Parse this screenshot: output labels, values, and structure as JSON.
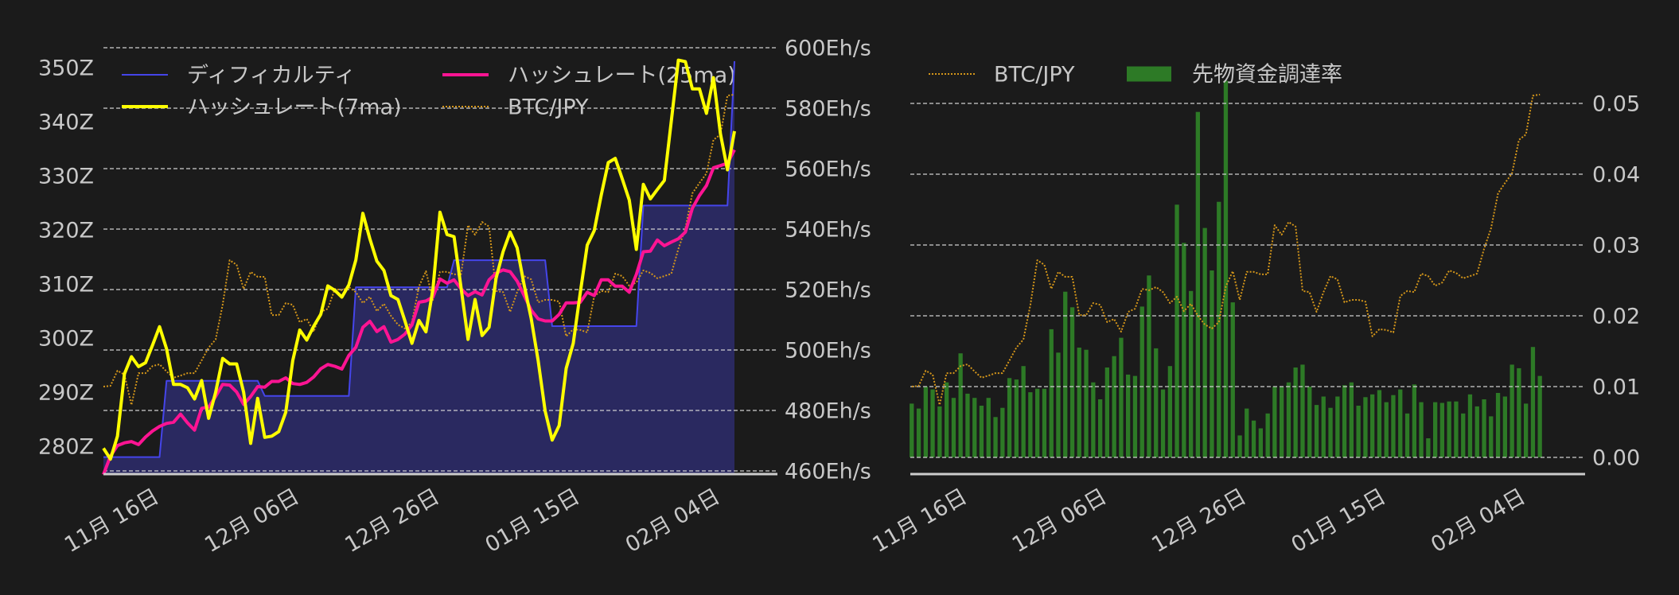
{
  "page": {
    "background": "#1b1b1b",
    "text_color": "#c8c8c8",
    "grid_color": "#cfcfcf",
    "axis_line_color": "#cccccc"
  },
  "chart_data": [
    {
      "id": "chart-hashrate-difficulty",
      "type": "line",
      "title": "",
      "xlabel": "",
      "num_points": 91,
      "xlim": [
        0,
        95.9
      ],
      "x_ticks": {
        "indices": [
          7,
          27,
          47,
          67,
          87
        ],
        "labels": [
          "11月 16日",
          "12月 06日",
          "12月 26日",
          "01月 15日",
          "02月 04日"
        ],
        "rotation": 30
      },
      "axes": {
        "difficulty": {
          "side": "left",
          "ylim": [
            274.85,
            356.62
          ],
          "ticks": [
            280,
            290,
            300,
            310,
            320,
            330,
            340,
            350
          ],
          "tick_labels": [
            "280Z",
            "290Z",
            "300Z",
            "310Z",
            "320Z",
            "330Z",
            "340Z",
            "350Z"
          ],
          "grid": false
        },
        "hashrate": {
          "side": "right",
          "ylim": [
            458.95,
            605.26
          ],
          "ticks": [
            460,
            480,
            500,
            520,
            540,
            560,
            580,
            600
          ],
          "tick_labels": [
            "460Eh/s",
            "480Eh/s",
            "500Eh/s",
            "520Eh/s",
            "540Eh/s",
            "560Eh/s",
            "580Eh/s",
            "600Eh/s"
          ],
          "grid": true
        },
        "btc": {
          "side": "hidden",
          "ylim": [
            -0.0472,
            1.2022
          ]
        }
      },
      "series": [
        {
          "key": "difficulty",
          "name": "ディフィカルティ",
          "axis": "difficulty",
          "kind": "area-line",
          "color": "#4545ea",
          "fill": "#2a2960",
          "width": 2,
          "unit": "Z",
          "values": [
            278.0,
            278.0,
            278.0,
            278.0,
            278.0,
            278.0,
            278.0,
            278.0,
            278.0,
            292.1,
            292.1,
            292.1,
            292.1,
            292.1,
            292.1,
            292.1,
            292.1,
            292.1,
            292.1,
            292.1,
            292.1,
            292.1,
            292.1,
            289.3,
            289.3,
            289.3,
            289.3,
            289.3,
            289.3,
            289.3,
            289.3,
            289.3,
            289.3,
            289.3,
            289.3,
            289.3,
            309.4,
            309.4,
            309.4,
            309.4,
            309.4,
            309.4,
            309.4,
            309.4,
            309.4,
            309.4,
            309.4,
            309.4,
            309.4,
            309.4,
            314.4,
            314.4,
            314.4,
            314.4,
            314.4,
            314.4,
            314.4,
            314.4,
            314.4,
            314.4,
            314.4,
            314.4,
            314.4,
            314.4,
            302.2,
            302.2,
            302.2,
            302.2,
            302.2,
            302.2,
            302.2,
            302.2,
            302.2,
            302.2,
            302.2,
            302.2,
            302.2,
            324.5,
            324.5,
            324.5,
            324.5,
            324.5,
            324.5,
            324.5,
            324.5,
            324.5,
            324.5,
            324.5,
            324.5,
            324.5,
            351.2
          ]
        },
        {
          "key": "btc",
          "name": "BTC/JPY",
          "axis": "btc",
          "kind": "dotted",
          "color": "#d4961a",
          "width": 2,
          "unit": "relative (no axis shown)",
          "values": [
            0.2,
            0.202,
            0.245,
            0.234,
            0.148,
            0.238,
            0.238,
            0.258,
            0.263,
            0.243,
            0.225,
            0.231,
            0.238,
            0.238,
            0.274,
            0.31,
            0.333,
            0.431,
            0.557,
            0.544,
            0.476,
            0.524,
            0.51,
            0.51,
            0.402,
            0.402,
            0.436,
            0.431,
            0.382,
            0.391,
            0.355,
            0.411,
            0.42,
            0.476,
            0.472,
            0.481,
            0.467,
            0.436,
            0.454,
            0.413,
            0.434,
            0.4,
            0.375,
            0.364,
            0.382,
            0.483,
            0.526,
            0.445,
            0.524,
            0.524,
            0.517,
            0.517,
            0.656,
            0.629,
            0.665,
            0.652,
            0.47,
            0.467,
            0.411,
            0.467,
            0.512,
            0.503,
            0.438,
            0.445,
            0.445,
            0.44,
            0.342,
            0.362,
            0.36,
            0.353,
            0.456,
            0.47,
            0.467,
            0.519,
            0.512,
            0.485,
            0.494,
            0.528,
            0.521,
            0.506,
            0.512,
            0.519,
            0.589,
            0.647,
            0.746,
            0.775,
            0.802,
            0.897,
            0.912,
            1.022,
            1.025
          ]
        },
        {
          "key": "hashrate_25ma",
          "name": "ハッシュレート(25ma)",
          "axis": "hashrate",
          "kind": "line",
          "color": "#ff1493",
          "width": 4,
          "unit": "Eh/s",
          "values": [
            458.8,
            464.9,
            468.4,
            469.3,
            469.7,
            468.7,
            471.2,
            473.2,
            474.7,
            475.7,
            476.1,
            478.8,
            475.9,
            473.5,
            480.7,
            481.1,
            484.6,
            488.6,
            488.4,
            486.1,
            482.0,
            484.6,
            487.9,
            487.7,
            489.6,
            489.6,
            490.8,
            488.9,
            488.6,
            489.3,
            491.1,
            493.8,
            495.2,
            494.6,
            493.7,
            498.2,
            500.9,
            507.5,
            509.5,
            506.1,
            507.7,
            502.6,
            503.5,
            505.3,
            508.3,
            515.8,
            516.2,
            517.5,
            523.5,
            522.1,
            523.2,
            520.2,
            518.0,
            519.3,
            518.2,
            523.2,
            525.4,
            526.5,
            525.9,
            522.8,
            518.0,
            513.2,
            510.3,
            509.6,
            509.6,
            511.8,
            515.6,
            515.6,
            515.8,
            519.1,
            518.0,
            523.2,
            523.2,
            521.1,
            521.1,
            519.1,
            525.0,
            532.5,
            532.7,
            536.4,
            534.5,
            535.7,
            536.8,
            539.0,
            546.9,
            551.1,
            554.4,
            560.3,
            561.0,
            561.8,
            566.2
          ]
        },
        {
          "key": "hashrate_7ma",
          "name": "ハッシュレート(7ma)",
          "axis": "hashrate",
          "kind": "line",
          "color": "#ffff00",
          "width": 4,
          "unit": "Eh/s",
          "values": [
            467.5,
            463.9,
            471.5,
            492.1,
            497.8,
            494.5,
            495.8,
            501.6,
            507.7,
            500.4,
            488.6,
            488.6,
            487.5,
            483.8,
            489.9,
            477.4,
            486.0,
            497.2,
            495.4,
            495.4,
            486.0,
            469.1,
            484.0,
            471.1,
            471.5,
            473.0,
            479.4,
            496.5,
            506.6,
            503.3,
            507.9,
            511.8,
            521.2,
            519.7,
            517.5,
            521.5,
            529.8,
            545.2,
            536.8,
            529.4,
            526.3,
            518.0,
            516.7,
            509.6,
            502.2,
            509.8,
            506.0,
            520.2,
            545.6,
            538.2,
            537.5,
            520.6,
            503.5,
            516.7,
            504.8,
            507.5,
            523.7,
            532.5,
            539.0,
            533.8,
            521.5,
            510.5,
            496.5,
            479.8,
            470.2,
            475.0,
            493.9,
            502.2,
            518.9,
            534.7,
            539.5,
            551.3,
            562.0,
            563.4,
            556.6,
            549.6,
            533.3,
            554.8,
            550.0,
            553.1,
            556.1,
            575.9,
            595.9,
            595.4,
            586.4,
            586.4,
            578.3,
            590.1,
            571.5,
            559.6,
            572.4
          ]
        }
      ],
      "legend": {
        "position": "upper left",
        "ncol": 2,
        "entries": [
          {
            "label": "ディフィカルティ",
            "series": "difficulty"
          },
          {
            "label": "ハッシュレート(7ma)",
            "series": "hashrate_7ma"
          },
          {
            "label": "ハッシュレート(25ma)",
            "series": "hashrate_25ma"
          },
          {
            "label": "BTC/JPY",
            "series": "btc"
          }
        ]
      }
    },
    {
      "id": "chart-funding-rate",
      "type": "bar",
      "title": "",
      "xlabel": "",
      "num_points": 91,
      "xlim": [
        -0.2,
        96.25
      ],
      "x_ticks": {
        "indices": [
          7,
          27,
          47,
          67,
          87
        ],
        "labels": [
          "11月 16日",
          "12月 06日",
          "12月 26日",
          "01月 15日",
          "02月 04日"
        ],
        "rotation": 30
      },
      "axes": {
        "funding": {
          "side": "right",
          "ylim": [
            -0.00236,
            0.06011
          ],
          "ticks": [
            0.0,
            0.01,
            0.02,
            0.03,
            0.04,
            0.05
          ],
          "tick_labels": [
            "0.00",
            "0.01",
            "0.02",
            "0.03",
            "0.04",
            "0.05"
          ],
          "grid": true
        },
        "btc": {
          "side": "hidden",
          "ylim": [
            -0.0472,
            1.2022
          ]
        }
      },
      "series": [
        {
          "key": "funding_rate",
          "name": "先物資金調達率",
          "axis": "funding",
          "kind": "bar",
          "color": "#2d7a26",
          "bar_width": 0.6,
          "values": [
            0.0076,
            0.0069,
            0.01,
            0.0096,
            0.0072,
            0.0106,
            0.0084,
            0.0147,
            0.009,
            0.0084,
            0.0073,
            0.0084,
            0.0057,
            0.007,
            0.0112,
            0.011,
            0.0129,
            0.0092,
            0.0097,
            0.0097,
            0.0181,
            0.0148,
            0.0234,
            0.0212,
            0.0155,
            0.0152,
            0.0106,
            0.0082,
            0.0127,
            0.0143,
            0.0169,
            0.0117,
            0.0115,
            0.0213,
            0.0257,
            0.0154,
            0.0096,
            0.0129,
            0.0357,
            0.0303,
            0.0235,
            0.0488,
            0.0324,
            0.0264,
            0.0361,
            0.0532,
            0.0219,
            0.0031,
            0.0069,
            0.0052,
            0.0041,
            0.0062,
            0.01,
            0.01,
            0.0106,
            0.0127,
            0.0131,
            0.01,
            0.0074,
            0.0086,
            0.007,
            0.0086,
            0.0102,
            0.0106,
            0.0073,
            0.0085,
            0.0089,
            0.0095,
            0.0078,
            0.0088,
            0.0096,
            0.0062,
            0.0103,
            0.0078,
            0.0027,
            0.0078,
            0.0077,
            0.0079,
            0.0079,
            0.0062,
            0.0089,
            0.0072,
            0.0082,
            0.0058,
            0.0091,
            0.0086,
            0.0131,
            0.0126,
            0.0076,
            0.0156,
            0.0115
          ]
        },
        {
          "key": "btc",
          "name": "BTC/JPY",
          "axis": "btc",
          "kind": "dotted",
          "color": "#d4961a",
          "width": 2,
          "unit": "relative (no axis shown)",
          "values": [
            0.2,
            0.202,
            0.245,
            0.234,
            0.148,
            0.238,
            0.238,
            0.258,
            0.263,
            0.243,
            0.225,
            0.231,
            0.238,
            0.238,
            0.274,
            0.31,
            0.333,
            0.431,
            0.557,
            0.544,
            0.476,
            0.524,
            0.51,
            0.51,
            0.402,
            0.402,
            0.436,
            0.431,
            0.382,
            0.391,
            0.355,
            0.411,
            0.42,
            0.476,
            0.472,
            0.481,
            0.467,
            0.436,
            0.454,
            0.413,
            0.434,
            0.4,
            0.375,
            0.364,
            0.382,
            0.483,
            0.526,
            0.445,
            0.524,
            0.524,
            0.517,
            0.517,
            0.656,
            0.629,
            0.665,
            0.652,
            0.47,
            0.467,
            0.411,
            0.467,
            0.512,
            0.503,
            0.438,
            0.445,
            0.445,
            0.44,
            0.342,
            0.362,
            0.36,
            0.353,
            0.456,
            0.47,
            0.467,
            0.519,
            0.512,
            0.485,
            0.494,
            0.528,
            0.521,
            0.506,
            0.512,
            0.519,
            0.589,
            0.647,
            0.746,
            0.775,
            0.802,
            0.897,
            0.912,
            1.022,
            1.025
          ]
        }
      ],
      "legend": {
        "position": "upper left",
        "ncol": 2,
        "entries": [
          {
            "label": "BTC/JPY",
            "series": "btc"
          },
          {
            "label": "先物資金調達率",
            "series": "funding_rate"
          }
        ]
      }
    }
  ]
}
